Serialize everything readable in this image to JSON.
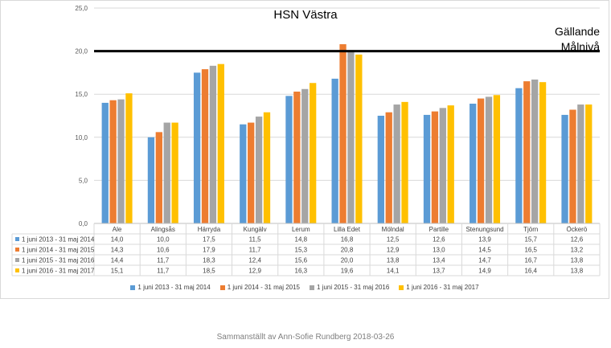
{
  "chart_data": {
    "type": "bar",
    "title": "HSN Västra",
    "categories": [
      "Ale",
      "Alingsås",
      "Härryda",
      "Kungälv",
      "Lerum",
      "Lilla Edet",
      "Mölndal",
      "Partille",
      "Stenungsund",
      "Tjörn",
      "Öckerö"
    ],
    "series": [
      {
        "name": "1 juni 2013 - 31 maj 2014",
        "color": "#5b9bd5",
        "values": [
          14.0,
          10.0,
          17.5,
          11.5,
          14.8,
          16.8,
          12.5,
          12.6,
          13.9,
          15.7,
          12.6
        ]
      },
      {
        "name": "1 juni 2014 - 31 maj 2015",
        "color": "#ed7d31",
        "values": [
          14.3,
          10.6,
          17.9,
          11.7,
          15.3,
          20.8,
          12.9,
          13.0,
          14.5,
          16.5,
          13.2
        ]
      },
      {
        "name": "1 juni 2015 - 31 maj 2016",
        "color": "#a5a5a5",
        "values": [
          14.4,
          11.7,
          18.3,
          12.4,
          15.6,
          20.0,
          13.8,
          13.4,
          14.7,
          16.7,
          13.8
        ]
      },
      {
        "name": "1 juni 2016 - 31 maj 2017",
        "color": "#ffc000",
        "values": [
          15.1,
          11.7,
          18.5,
          12.9,
          16.3,
          19.6,
          14.1,
          13.7,
          14.9,
          16.4,
          13.8
        ]
      }
    ],
    "table_values": [
      [
        "14,0",
        "10,0",
        "17,5",
        "11,5",
        "14,8",
        "16,8",
        "12,5",
        "12,6",
        "13,9",
        "15,7",
        "12,6"
      ],
      [
        "14,3",
        "10,6",
        "17,9",
        "11,7",
        "15,3",
        "20,8",
        "12,9",
        "13,0",
        "14,5",
        "16,5",
        "13,2"
      ],
      [
        "14,4",
        "11,7",
        "18,3",
        "12,4",
        "15,6",
        "20,0",
        "13,8",
        "13,4",
        "14,7",
        "16,7",
        "13,8"
      ],
      [
        "15,1",
        "11,7",
        "18,5",
        "12,9",
        "16,3",
        "19,6",
        "14,1",
        "13,7",
        "14,9",
        "16,4",
        "13,8"
      ]
    ],
    "ylim": [
      0,
      25
    ],
    "yticks": [
      "0,0",
      "5,0",
      "10,0",
      "15,0",
      "20,0",
      "25,0"
    ],
    "gridlines": true,
    "reference_line": {
      "value": 20.0,
      "label_lines": [
        "Gällande",
        "Målnivå"
      ],
      "color": "#000000"
    },
    "legend_position": "bottom",
    "data_table": true
  },
  "footer_text": "Sammanställt av Ann-Sofie Rundberg 2018-03-26"
}
